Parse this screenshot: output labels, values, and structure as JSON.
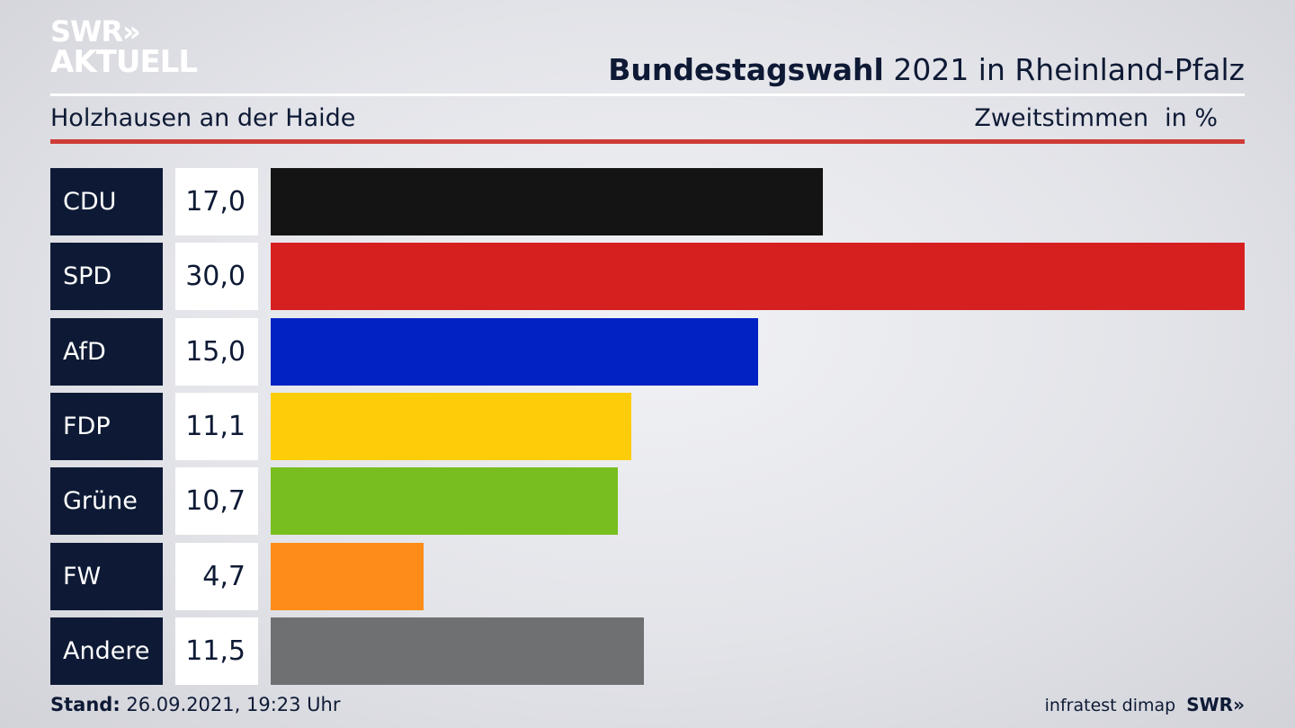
{
  "logo": {
    "line1": "SWR»",
    "line2": "AKTUELL"
  },
  "header": {
    "title_bold": "Bundestagswahl",
    "title_rest": " 2021 in Rheinland-Pfalz",
    "subtitle": "Holzhausen an der Haide",
    "metric": "Zweitstimmen",
    "unit": "in %"
  },
  "footer": {
    "stand_label": "Stand:",
    "stand_value": " 26.09.2021, 19:23 Uhr",
    "source": "infratest dimap",
    "brand": "SWR»"
  },
  "chart_data": {
    "type": "bar",
    "orientation": "horizontal",
    "title": "Bundestagswahl 2021 in Rheinland-Pfalz",
    "subtitle": "Holzhausen an der Haide",
    "xlabel": "Zweitstimmen in %",
    "xlim": [
      0,
      30
    ],
    "bars": [
      {
        "party": "CDU",
        "value": 17.0,
        "label": "17,0",
        "color": "#141414"
      },
      {
        "party": "SPD",
        "value": 30.0,
        "label": "30,0",
        "color": "#d62020"
      },
      {
        "party": "AfD",
        "value": 15.0,
        "label": "15,0",
        "color": "#0222c4"
      },
      {
        "party": "FDP",
        "value": 11.1,
        "label": "11,1",
        "color": "#fecd0a"
      },
      {
        "party": "Grüne",
        "value": 10.7,
        "label": "10,7",
        "color": "#78be1e"
      },
      {
        "party": "FW",
        "value": 4.7,
        "label": "4,7",
        "color": "#fe8c18"
      },
      {
        "party": "Andere",
        "value": 11.5,
        "label": "11,5",
        "color": "#6f7072"
      }
    ]
  }
}
